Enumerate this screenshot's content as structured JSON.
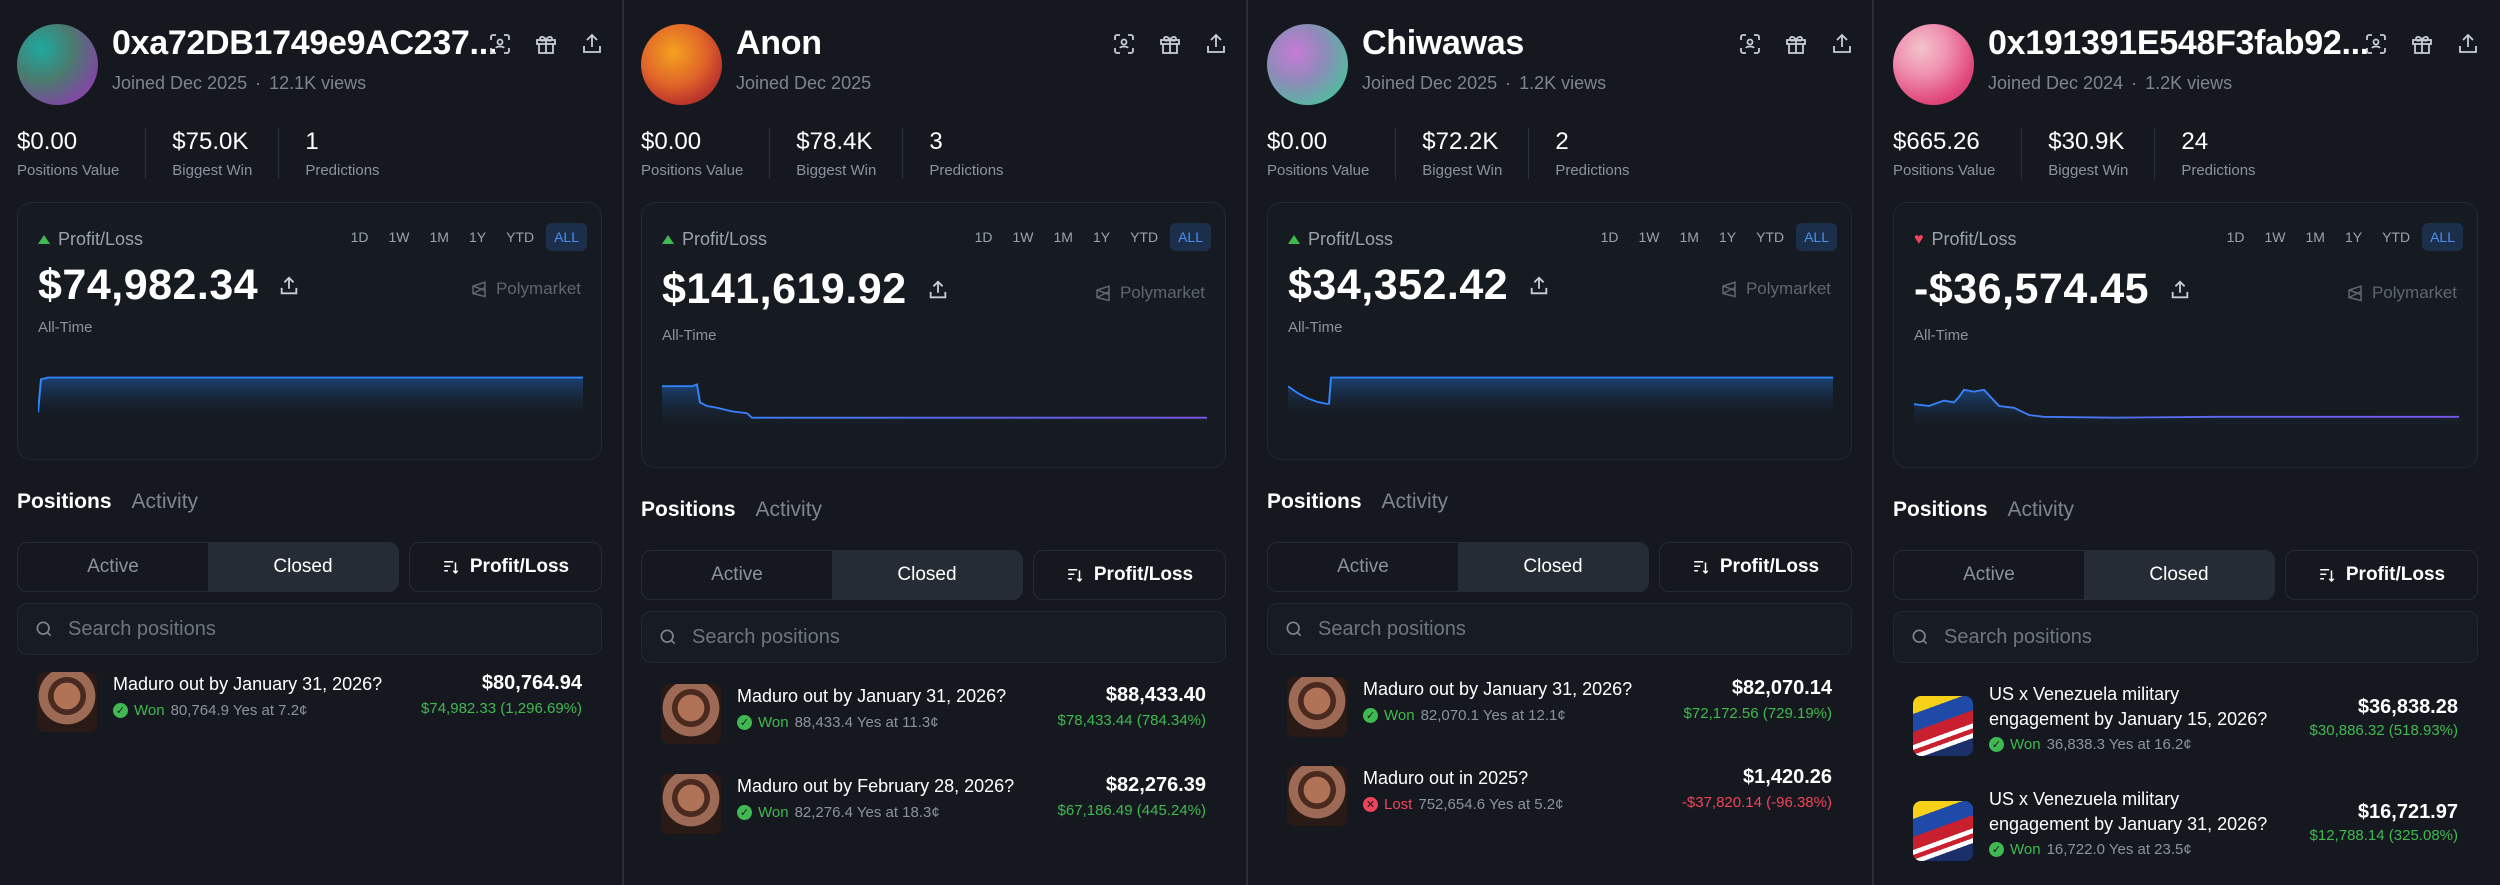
{
  "ranges": [
    "1D",
    "1W",
    "1M",
    "1Y",
    "YTD",
    "ALL"
  ],
  "panels": [
    {
      "name": "0xa72DB1749e9AC237...",
      "joined": "Joined Dec 2025",
      "views": "12.1K views",
      "stats": [
        {
          "value": "$0.00",
          "label": "Positions Value"
        },
        {
          "value": "$75.0K",
          "label": "Biggest Win"
        },
        {
          "value": "1",
          "label": "Predictions"
        }
      ],
      "pl_label": "Profit/Loss",
      "pl_direction": "up",
      "pl_value": "$74,982.34",
      "brand": "Polymarket",
      "period": "All-Time",
      "tabs": {
        "positions": "Positions",
        "activity": "Activity"
      },
      "segments": {
        "active": "Active",
        "closed": "Closed",
        "sort": "Profit/Loss"
      },
      "search_placeholder": "Search positions",
      "rows": [
        {
          "title1": "Maduro out by January 31, 2026?",
          "title2": "",
          "status": "Won",
          "detail": "80,764.9 Yes at 7.2¢",
          "value": "$80,764.94",
          "pl": "$74,982.33 (1,296.69%)",
          "pl_sign": "pos",
          "thumb": "maduro"
        }
      ]
    },
    {
      "name": "Anon",
      "joined": "Joined Dec 2025",
      "views": "",
      "stats": [
        {
          "value": "$0.00",
          "label": "Positions Value"
        },
        {
          "value": "$78.4K",
          "label": "Biggest Win"
        },
        {
          "value": "3",
          "label": "Predictions"
        }
      ],
      "pl_label": "Profit/Loss",
      "pl_direction": "up",
      "pl_value": "$141,619.92",
      "brand": "Polymarket",
      "period": "All-Time",
      "tabs": {
        "positions": "Positions",
        "activity": "Activity"
      },
      "segments": {
        "active": "Active",
        "closed": "Closed",
        "sort": "Profit/Loss"
      },
      "search_placeholder": "Search positions",
      "rows": [
        {
          "title1": "Maduro out by January 31, 2026?",
          "title2": "",
          "status": "Won",
          "detail": "88,433.4 Yes at 11.3¢",
          "value": "$88,433.40",
          "pl": "$78,433.44 (784.34%)",
          "pl_sign": "pos",
          "thumb": "maduro"
        },
        {
          "title1": "Maduro out by February 28, 2026?",
          "title2": "",
          "status": "Won",
          "detail": "82,276.4 Yes at 18.3¢",
          "value": "$82,276.39",
          "pl": "$67,186.49 (445.24%)",
          "pl_sign": "pos",
          "thumb": "maduro"
        }
      ]
    },
    {
      "name": "Chiwawas",
      "joined": "Joined Dec 2025",
      "views": "1.2K views",
      "stats": [
        {
          "value": "$0.00",
          "label": "Positions Value"
        },
        {
          "value": "$72.2K",
          "label": "Biggest Win"
        },
        {
          "value": "2",
          "label": "Predictions"
        }
      ],
      "pl_label": "Profit/Loss",
      "pl_direction": "up",
      "pl_value": "$34,352.42",
      "brand": "Polymarket",
      "period": "All-Time",
      "tabs": {
        "positions": "Positions",
        "activity": "Activity"
      },
      "segments": {
        "active": "Active",
        "closed": "Closed",
        "sort": "Profit/Loss"
      },
      "search_placeholder": "Search positions",
      "rows": [
        {
          "title1": "Maduro out by January 31, 2026?",
          "title2": "",
          "status": "Won",
          "detail": "82,070.1 Yes at 12.1¢",
          "value": "$82,070.14",
          "pl": "$72,172.56 (729.19%)",
          "pl_sign": "pos",
          "thumb": "maduro"
        },
        {
          "title1": "Maduro out in 2025?",
          "title2": "",
          "status": "Lost",
          "detail": "752,654.6 Yes at 5.2¢",
          "value": "$1,420.26",
          "pl": "-$37,820.14 (-96.38%)",
          "pl_sign": "neg",
          "thumb": "maduro"
        }
      ]
    },
    {
      "name": "0x191391E548F3fab92...",
      "joined": "Joined Dec 2024",
      "views": "1.2K views",
      "stats": [
        {
          "value": "$665.26",
          "label": "Positions Value"
        },
        {
          "value": "$30.9K",
          "label": "Biggest Win"
        },
        {
          "value": "24",
          "label": "Predictions"
        }
      ],
      "pl_label": "Profit/Loss",
      "pl_direction": "down",
      "pl_value": "-$36,574.45",
      "brand": "Polymarket",
      "period": "All-Time",
      "tabs": {
        "positions": "Positions",
        "activity": "Activity"
      },
      "segments": {
        "active": "Active",
        "closed": "Closed",
        "sort": "Profit/Loss"
      },
      "search_placeholder": "Search positions",
      "rows": [
        {
          "title1": "US x Venezuela military",
          "title2": "engagement by January 15, 2026?",
          "status": "Won",
          "detail": "36,838.3 Yes at 16.2¢",
          "value": "$36,838.28",
          "pl": "$30,886.32 (518.93%)",
          "pl_sign": "pos",
          "thumb": "flag"
        },
        {
          "title1": "US x Venezuela military",
          "title2": "engagement by January 31, 2026?",
          "status": "Won",
          "detail": "16,722.0 Yes at 23.5¢",
          "value": "$16,721.97",
          "pl": "$12,788.14 (325.08%)",
          "pl_sign": "pos",
          "thumb": "flag"
        }
      ]
    }
  ]
}
